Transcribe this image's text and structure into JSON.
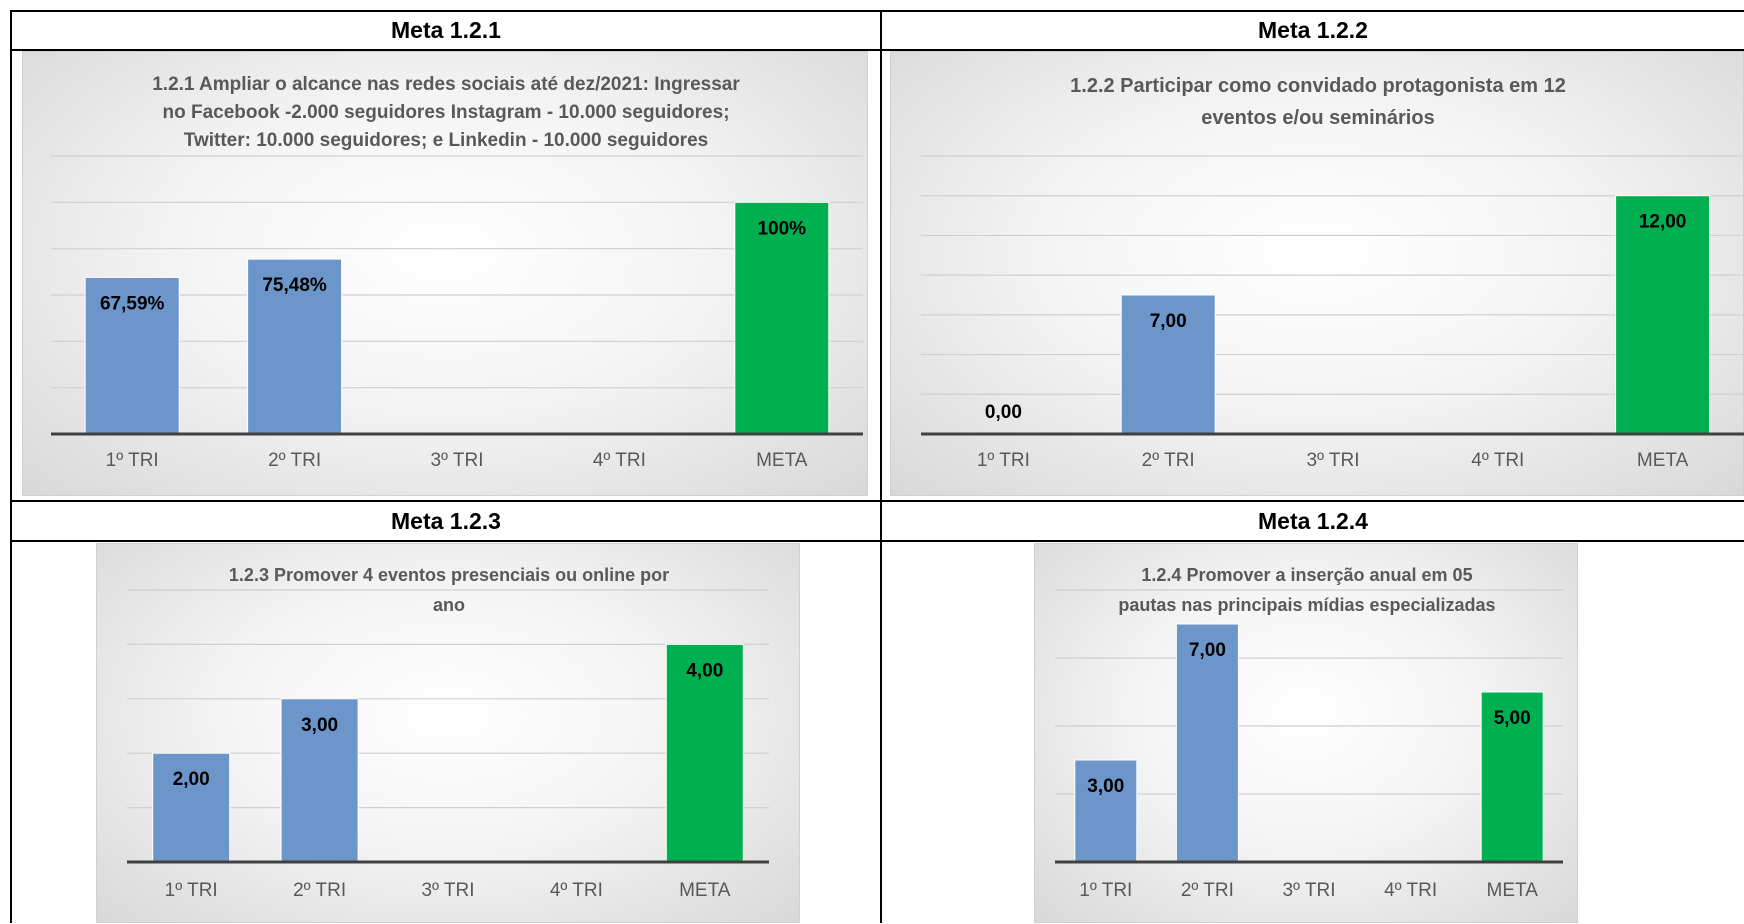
{
  "panels": [
    {
      "header": "Meta 1.2.1",
      "chart_data": {
        "type": "bar",
        "title_lines": [
          "1.2.1 Ampliar o alcance nas redes sociais até dez/2021: Ingressar",
          "no Facebook -2.000 seguidores Instagram - 10.000 seguidores;",
          "Twitter: 10.000 seguidores; e Linkedin - 10.000 seguidores"
        ],
        "categories": [
          "1º TRI",
          "2º TRI",
          "3º TRI",
          "4º TRI",
          "META"
        ],
        "values": [
          67.59,
          75.48,
          null,
          null,
          100
        ],
        "data_labels": [
          "67,59%",
          "75,48%",
          "",
          "",
          "100%"
        ],
        "bar_colors": [
          "#6c96c9",
          "#6c96c9",
          "#6c96c9",
          "#6c96c9",
          "#00b050"
        ],
        "ylim": [
          0,
          120
        ],
        "grid": true
      }
    },
    {
      "header": "Meta 1.2.2",
      "chart_data": {
        "type": "bar",
        "title_lines": [
          "1.2.2 Participar como convidado protagonista em 12",
          "eventos e/ou seminários"
        ],
        "categories": [
          "1º TRI",
          "2º TRI",
          "3º TRI",
          "4º TRI",
          "META"
        ],
        "values": [
          0,
          7,
          null,
          null,
          12
        ],
        "data_labels": [
          "0,00",
          "7,00",
          "",
          "",
          "12,00"
        ],
        "bar_colors": [
          "#6c96c9",
          "#6c96c9",
          "#6c96c9",
          "#6c96c9",
          "#00b050"
        ],
        "ylim": [
          0,
          14
        ],
        "grid": true
      }
    },
    {
      "header": "Meta 1.2.3",
      "chart_data": {
        "type": "bar",
        "title_lines": [
          "1.2.3 Promover 4 eventos presenciais ou online por",
          "ano"
        ],
        "categories": [
          "1º TRI",
          "2º TRI",
          "3º TRI",
          "4º TRI",
          "META"
        ],
        "values": [
          2,
          3,
          null,
          null,
          4
        ],
        "data_labels": [
          "2,00",
          "3,00",
          "",
          "",
          "4,00"
        ],
        "bar_colors": [
          "#6c96c9",
          "#6c96c9",
          "#6c96c9",
          "#6c96c9",
          "#00b050"
        ],
        "ylim": [
          0,
          5
        ],
        "grid": true
      }
    },
    {
      "header": "Meta 1.2.4",
      "chart_data": {
        "type": "bar",
        "title_lines": [
          "1.2.4 Promover a inserção anual em 05",
          "pautas nas principais mídias especializadas"
        ],
        "categories": [
          "1º TRI",
          "2º TRI",
          "3º TRI",
          "4º TRI",
          "META"
        ],
        "values": [
          3,
          7,
          null,
          null,
          5
        ],
        "data_labels": [
          "3,00",
          "7,00",
          "",
          "",
          "5,00"
        ],
        "bar_colors": [
          "#6c96c9",
          "#6c96c9",
          "#6c96c9",
          "#6c96c9",
          "#00b050"
        ],
        "ylim": [
          0,
          8
        ],
        "grid": true
      }
    }
  ]
}
